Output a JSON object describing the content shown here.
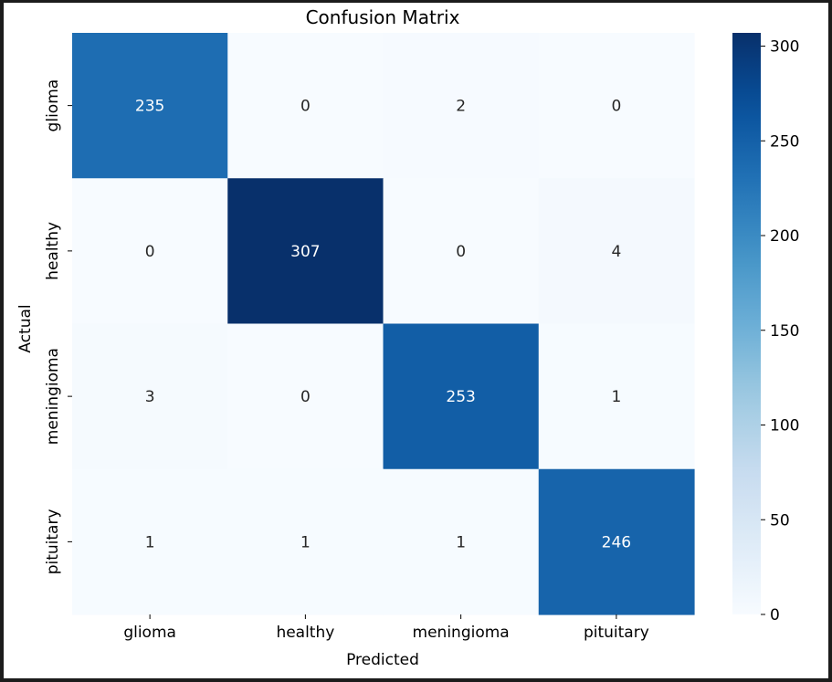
{
  "chart_data": {
    "type": "heatmap",
    "title": "Confusion Matrix",
    "xlabel": "Predicted",
    "ylabel": "Actual",
    "x_categories": [
      "glioma",
      "healthy",
      "meningioma",
      "pituitary"
    ],
    "y_categories": [
      "glioma",
      "healthy",
      "meningioma",
      "pituitary"
    ],
    "values": [
      [
        235,
        0,
        2,
        0
      ],
      [
        0,
        307,
        0,
        4
      ],
      [
        3,
        0,
        253,
        1
      ],
      [
        1,
        1,
        1,
        246
      ]
    ],
    "colormap": "Blues",
    "colorbar": {
      "range": [
        0,
        307
      ],
      "ticks": [
        "0",
        "50",
        "100",
        "150",
        "200",
        "250",
        "300"
      ]
    },
    "annotations": true,
    "colors": {
      "low": "#f7fbff",
      "high": "#08306b",
      "frame": "#1c1c1c"
    }
  }
}
